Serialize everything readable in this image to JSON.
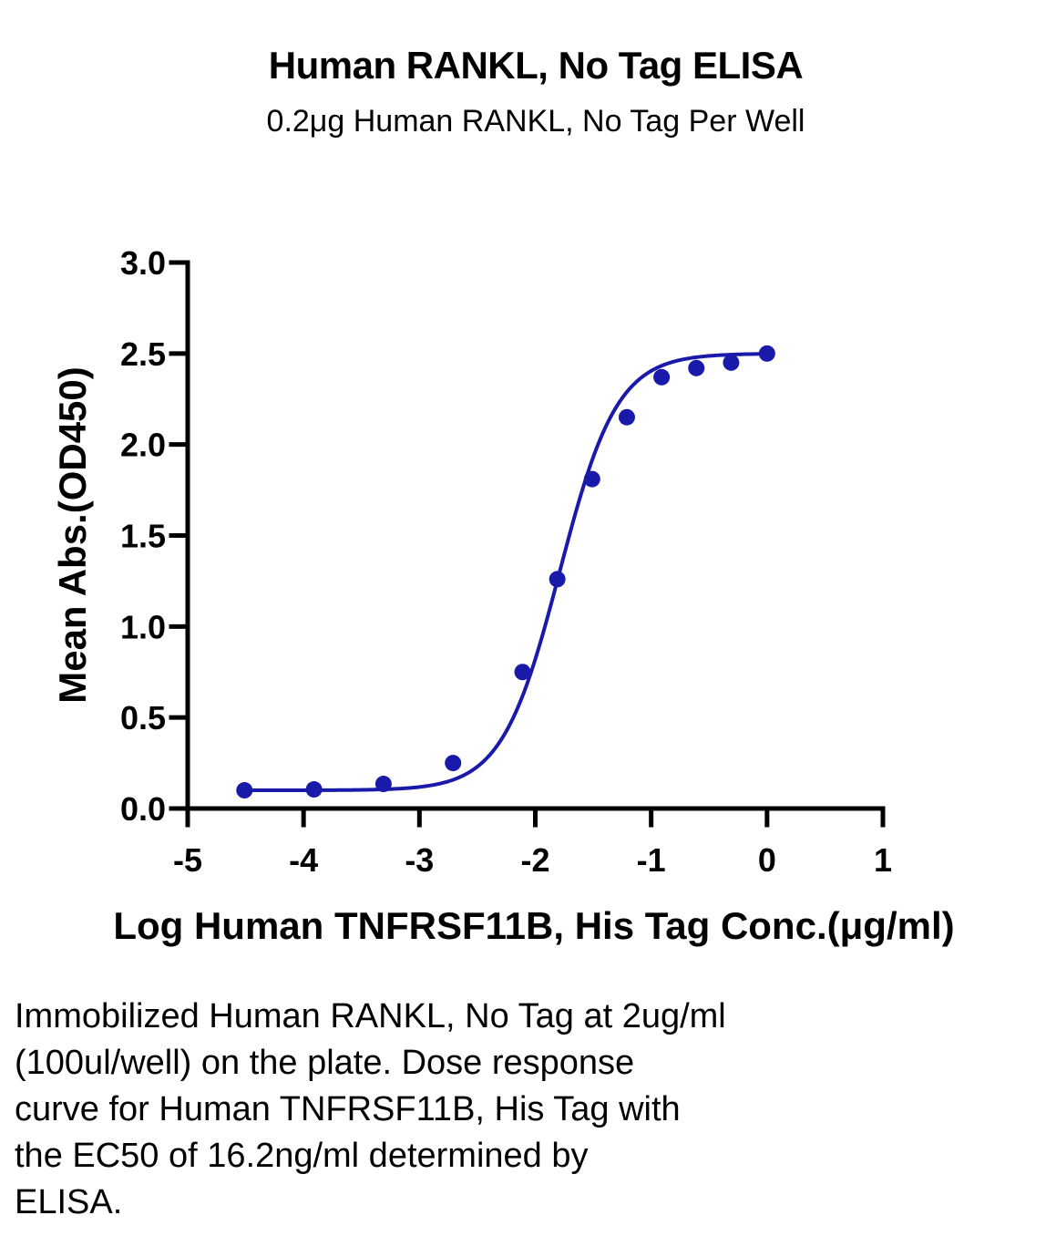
{
  "chart_data": {
    "type": "line",
    "title": "Human RANKL, No Tag ELISA",
    "subtitle": "0.2μg Human RANKL, No Tag Per Well",
    "xlabel": "Log Human TNFRSF11B, His Tag Conc.(μg/ml)",
    "ylabel": "Mean Abs.(OD450)",
    "xlim": [
      -5,
      1
    ],
    "ylim": [
      0,
      3.0
    ],
    "x_ticks": [
      "-5",
      "-4",
      "-3",
      "-2",
      "-1",
      "0",
      "1"
    ],
    "x_tick_values": [
      -5,
      -4,
      -3,
      -2,
      -1,
      0,
      1
    ],
    "y_ticks": [
      "0.0",
      "0.5",
      "1.0",
      "1.5",
      "2.0",
      "2.5",
      "3.0"
    ],
    "y_tick_values": [
      0,
      0.5,
      1.0,
      1.5,
      2.0,
      2.5,
      3.0
    ],
    "grid": false,
    "series": [
      {
        "x": [
          -4.51,
          -3.91,
          -3.31,
          -2.71,
          -2.11,
          -1.81,
          -1.51,
          -1.21,
          -0.91,
          -0.61,
          -0.31,
          0.0
        ],
        "y": [
          0.1,
          0.105,
          0.135,
          0.25,
          0.75,
          1.26,
          1.81,
          2.15,
          2.37,
          2.42,
          2.45,
          2.5
        ],
        "color": "#1a1aaa",
        "fit": "4PL sigmoid"
      }
    ]
  },
  "caption_lines": [
    "Immobilized Human RANKL, No Tag at 2ug/ml",
    "(100ul/well) on the plate. Dose response",
    "curve for Human TNFRSF11B, His Tag with",
    "the EC50 of 16.2ng/ml determined by",
    "ELISA."
  ]
}
